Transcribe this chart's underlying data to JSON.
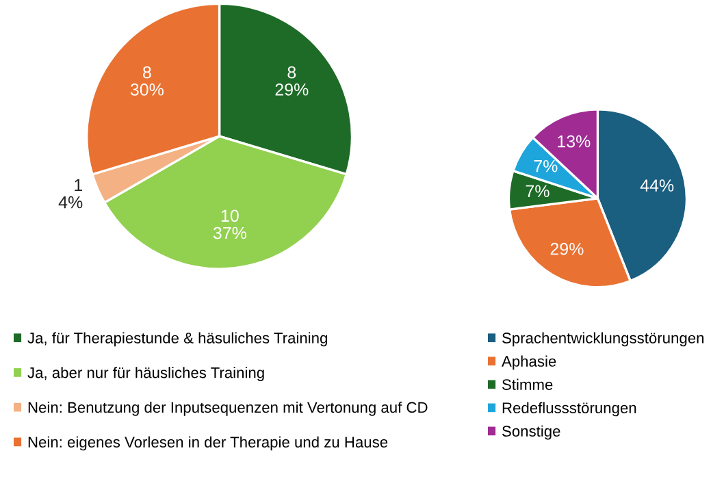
{
  "chart_data": [
    {
      "type": "pie",
      "categories": [
        "Ja, für Therapiestunde & häsuliches Training",
        "Ja, aber nur für häusliches Training",
        "Nein: Benutzung der Inputsequenzen mit Vertonung auf CD",
        "Nein: eigenes Vorlesen in der Therapie und zu Hause"
      ],
      "values": [
        8,
        10,
        1,
        8
      ],
      "colors": [
        "#1e6b27",
        "#92d050",
        "#f4b183",
        "#e97132"
      ],
      "value_labels": [
        "8\n29%",
        "10\n37%",
        "1\n4%",
        "8\n30%"
      ],
      "legend": "bottom"
    },
    {
      "type": "pie",
      "categories": [
        "Sprachentwicklungsstörungen",
        "Aphasie",
        "Stimme",
        "Redeflussstörungen",
        "Sonstige"
      ],
      "values": [
        44,
        29,
        7,
        7,
        13
      ],
      "colors": [
        "#1a5e80",
        "#e97132",
        "#1e6b27",
        "#1ea6dc",
        "#a02b93"
      ],
      "value_labels": [
        "44%",
        "29%",
        "7%",
        "7%",
        "13%"
      ],
      "legend": "bottom"
    }
  ]
}
